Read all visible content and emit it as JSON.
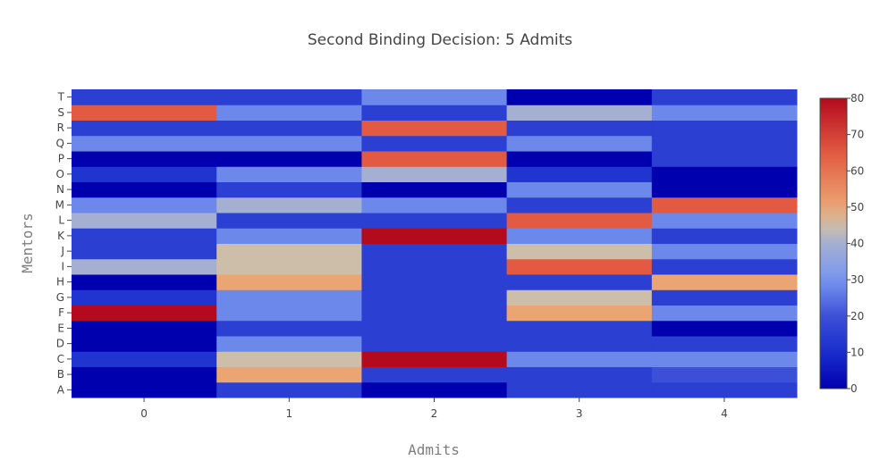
{
  "chart_data": {
    "type": "heatmap",
    "title": "Second Binding Decision: 5 Admits",
    "xlabel": "Admits",
    "ylabel": "Mentors",
    "x": [
      "0",
      "1",
      "2",
      "3",
      "4"
    ],
    "y": [
      "A",
      "B",
      "C",
      "D",
      "E",
      "F",
      "G",
      "H",
      "I",
      "J",
      "K",
      "L",
      "M",
      "N",
      "O",
      "P",
      "Q",
      "R",
      "S",
      "T"
    ],
    "z": [
      [
        0,
        15,
        0,
        15,
        15
      ],
      [
        0,
        50,
        15,
        15,
        20
      ],
      [
        12,
        45,
        80,
        28,
        28
      ],
      [
        0,
        28,
        15,
        15,
        15
      ],
      [
        0,
        15,
        15,
        15,
        0
      ],
      [
        80,
        28,
        15,
        50,
        28
      ],
      [
        12,
        28,
        15,
        45,
        15
      ],
      [
        0,
        50,
        15,
        15,
        50
      ],
      [
        40,
        45,
        15,
        65,
        15
      ],
      [
        15,
        45,
        15,
        45,
        28
      ],
      [
        15,
        28,
        80,
        28,
        15
      ],
      [
        40,
        15,
        15,
        65,
        28
      ],
      [
        28,
        40,
        28,
        15,
        65
      ],
      [
        0,
        15,
        0,
        28,
        0
      ],
      [
        12,
        28,
        40,
        12,
        0
      ],
      [
        0,
        0,
        65,
        0,
        15
      ],
      [
        28,
        28,
        15,
        28,
        15
      ],
      [
        15,
        15,
        65,
        15,
        15
      ],
      [
        65,
        28,
        15,
        40,
        28
      ],
      [
        15,
        15,
        28,
        0,
        15
      ]
    ],
    "zmin": 0,
    "zmax": 80,
    "colorscale": "coolwarm",
    "colorbar_ticks": [
      "0",
      "10",
      "20",
      "30",
      "40",
      "50",
      "60",
      "70",
      "80"
    ],
    "grid": false,
    "colorbar_position": "right"
  }
}
